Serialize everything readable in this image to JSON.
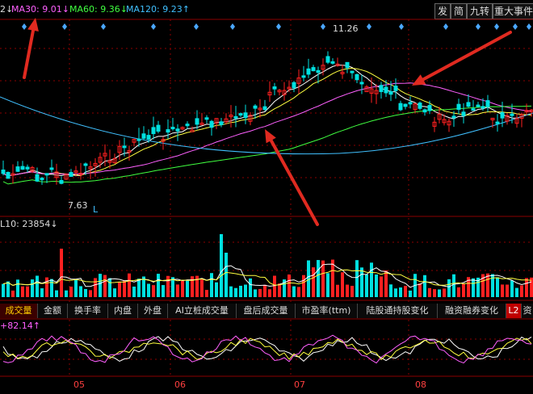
{
  "header": {
    "ma_prefix": "2↓",
    "ma30": "MA30: 9.01↓",
    "ma60": "MA60: 9.36↓",
    "ma120": "MA120: 9.23↑"
  },
  "top_buttons": [
    "发",
    "简",
    "九转",
    "重大事件"
  ],
  "price_labels": {
    "high": "11.26",
    "low": "7.63",
    "marker": "L"
  },
  "volume_label": "L10: 23854↓",
  "tabs": [
    "成交量",
    "金额",
    "换手率",
    "内盘",
    "外盘",
    "AI立桩成交量",
    "盘后成交量",
    "市盈率(ttm)",
    "陆股通持股变化",
    "融资融券变化",
    "L2",
    "资"
  ],
  "indicator_label": "+82.14↑",
  "month_labels": [
    "05",
    "06",
    "07",
    "08"
  ],
  "colors": {
    "up": "#ff2020",
    "down": "#00e0e0",
    "ma5": "#ffffff",
    "ma10": "#ffff40",
    "ma30": "#ff60ff",
    "ma60": "#40ff40",
    "ma120": "#40c0ff",
    "grid": "#8b0000",
    "arrow": "#e02a20"
  },
  "icons": [
    "diamond-marker-icon",
    "red-arrow-icon"
  ]
}
